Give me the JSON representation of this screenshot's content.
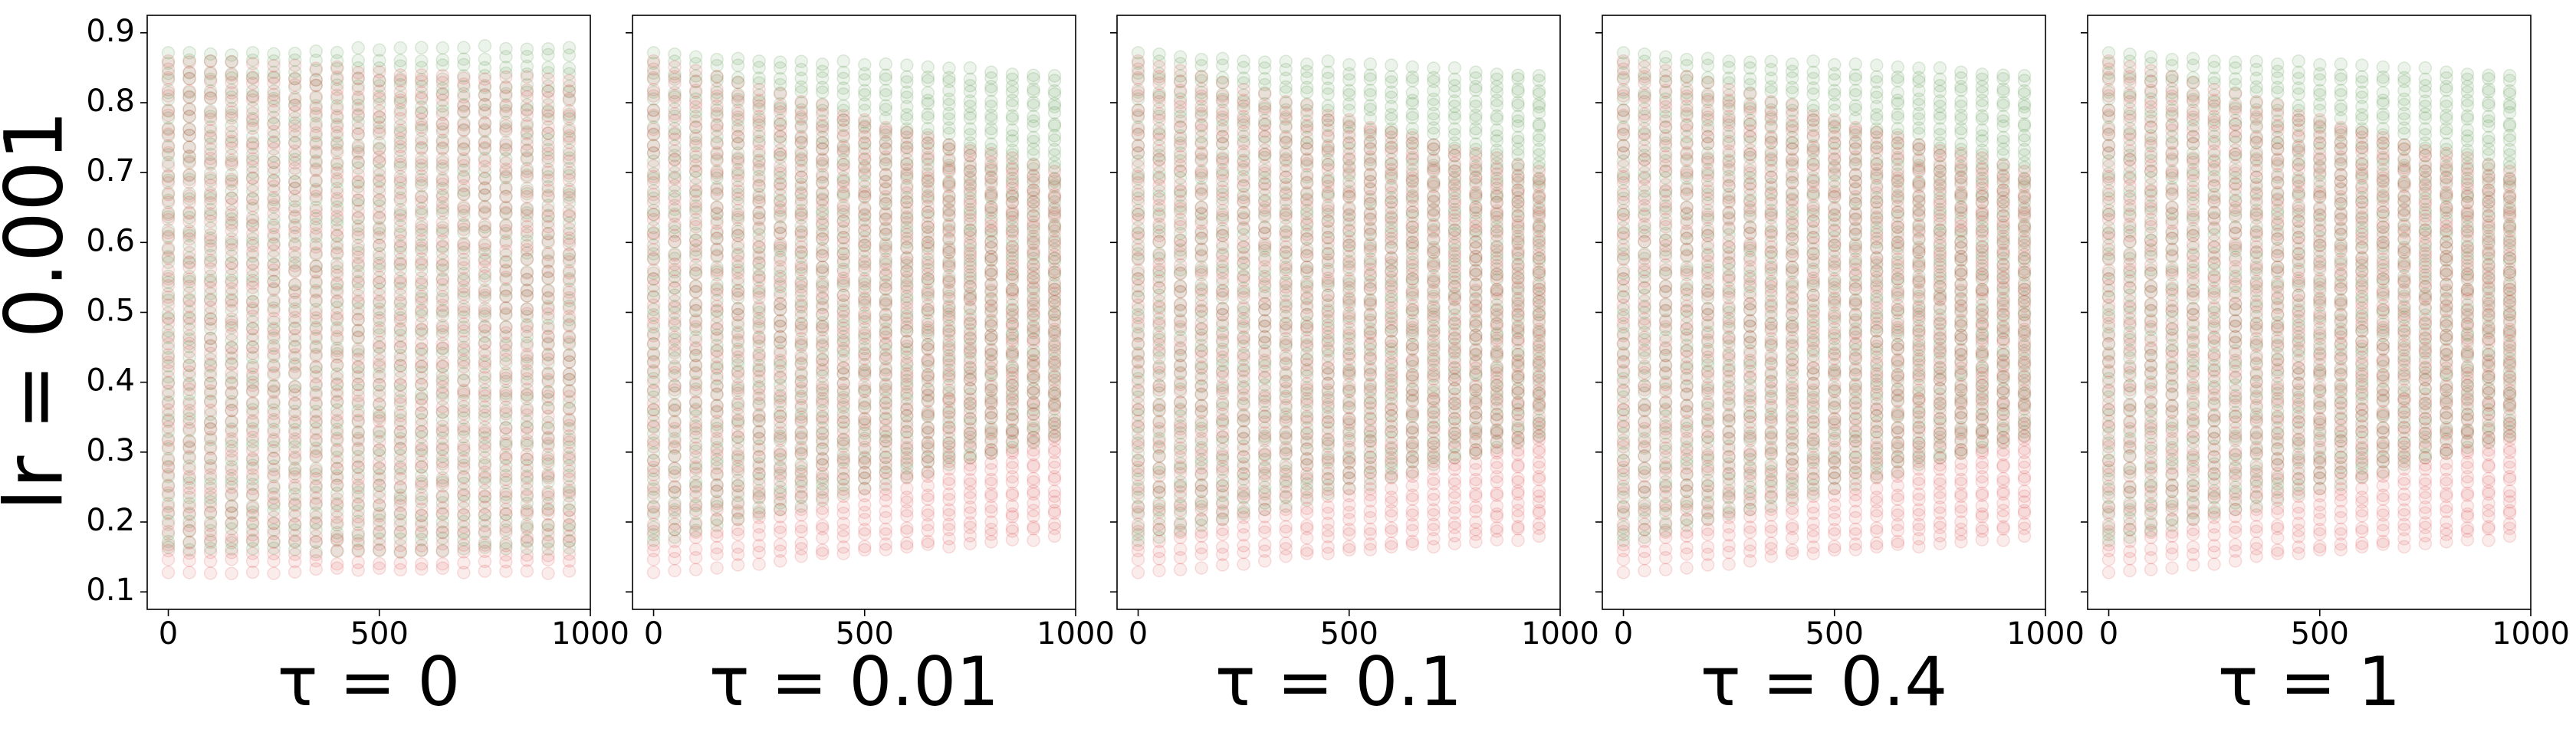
{
  "row_label": "lr = 0.001",
  "colors": {
    "series_a": "#2e7d1e",
    "series_b": "#d62728",
    "frame": "#000000",
    "background": "#ffffff"
  },
  "chart_data": {
    "type": "scatter",
    "shared_y": true,
    "ylim": [
      0.075,
      0.925
    ],
    "xlim": [
      -50,
      1000
    ],
    "y_ticks": [
      0.1,
      0.2,
      0.3,
      0.4,
      0.5,
      0.6,
      0.7,
      0.8,
      0.9
    ],
    "y_tick_labels": [
      "0.1",
      "0.2",
      "0.3",
      "0.4",
      "0.5",
      "0.6",
      "0.7",
      "0.8",
      "0.9"
    ],
    "x_ticks": [
      0,
      500,
      1000
    ],
    "x_tick_labels": [
      "0",
      "500",
      "1000"
    ],
    "x_positions": [
      0,
      50,
      100,
      150,
      200,
      250,
      300,
      350,
      400,
      450,
      500,
      550,
      600,
      650,
      700,
      750,
      800,
      850,
      900,
      950
    ],
    "legend": "none",
    "grid": false,
    "panels": [
      {
        "title": "τ = 0",
        "green_range": {
          "start": [
            0.16,
            0.87
          ],
          "end": [
            0.16,
            0.88
          ]
        },
        "red_range": {
          "start": [
            0.13,
            0.86
          ],
          "end": [
            0.13,
            0.83
          ]
        }
      },
      {
        "title": "τ = 0.01",
        "green_range": {
          "start": [
            0.17,
            0.87
          ],
          "end": [
            0.32,
            0.84
          ]
        },
        "red_range": {
          "start": [
            0.13,
            0.86
          ],
          "end": [
            0.18,
            0.7
          ]
        }
      },
      {
        "title": "τ = 0.1",
        "green_range": {
          "start": [
            0.17,
            0.87
          ],
          "end": [
            0.32,
            0.84
          ]
        },
        "red_range": {
          "start": [
            0.13,
            0.86
          ],
          "end": [
            0.18,
            0.7
          ]
        }
      },
      {
        "title": "τ = 0.4",
        "green_range": {
          "start": [
            0.17,
            0.87
          ],
          "end": [
            0.32,
            0.84
          ]
        },
        "red_range": {
          "start": [
            0.13,
            0.86
          ],
          "end": [
            0.18,
            0.7
          ]
        }
      },
      {
        "title": "τ = 1",
        "green_range": {
          "start": [
            0.17,
            0.87
          ],
          "end": [
            0.32,
            0.84
          ]
        },
        "red_range": {
          "start": [
            0.13,
            0.86
          ],
          "end": [
            0.18,
            0.7
          ]
        }
      }
    ]
  }
}
